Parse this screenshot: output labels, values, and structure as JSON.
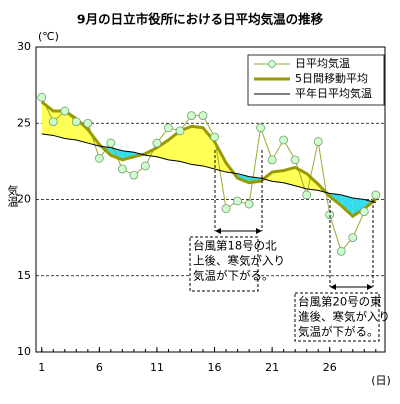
{
  "chart_data": {
    "type": "line",
    "title": "9月の日立市役所における日平均気温の推移",
    "y_unit_label": "(℃)",
    "y_label": "気温",
    "x_unit_label": "(日)",
    "x": [
      1,
      2,
      3,
      4,
      5,
      6,
      7,
      8,
      9,
      10,
      11,
      12,
      13,
      14,
      15,
      16,
      17,
      18,
      19,
      20,
      21,
      22,
      23,
      24,
      25,
      26,
      27,
      28,
      29,
      30
    ],
    "xlim": [
      0.5,
      30.8
    ],
    "xticks": [
      1,
      6,
      11,
      16,
      21,
      26
    ],
    "ylim": [
      10,
      30
    ],
    "yticks": [
      10,
      15,
      20,
      25,
      30
    ],
    "grid": true,
    "legend": "upper right",
    "fill_above_color": "#ffff55",
    "fill_below_color": "#33ddee",
    "series": [
      {
        "name": "日平均気温",
        "color": "#99aa33",
        "marker_fill": "#ccffcc",
        "values": [
          26.7,
          25.1,
          25.8,
          25.1,
          25.0,
          22.7,
          23.7,
          22.0,
          21.6,
          22.2,
          23.7,
          24.7,
          24.5,
          25.5,
          25.5,
          24.1,
          19.4,
          19.9,
          19.7,
          24.7,
          22.6,
          23.9,
          22.6,
          20.3,
          23.8,
          19.0,
          16.6,
          17.5,
          19.2,
          20.3
        ]
      },
      {
        "name": "5日間移動平均",
        "color": "#999900",
        "values": [
          26.4,
          25.8,
          25.8,
          25.3,
          24.6,
          23.6,
          22.9,
          22.6,
          22.8,
          23.0,
          23.4,
          23.9,
          24.5,
          24.8,
          24.7,
          23.8,
          22.4,
          21.4,
          21.1,
          21.2,
          21.8,
          21.9,
          22.1,
          21.7,
          21.0,
          20.2,
          19.6,
          18.9,
          19.4,
          20.0
        ]
      },
      {
        "name": "平年日平均気温",
        "color": "#000000",
        "values": [
          24.3,
          24.2,
          24.0,
          23.9,
          23.7,
          23.5,
          23.4,
          23.2,
          23.1,
          22.9,
          22.8,
          22.6,
          22.5,
          22.3,
          22.2,
          22.0,
          21.8,
          21.7,
          21.5,
          21.4,
          21.2,
          21.1,
          20.9,
          20.7,
          20.6,
          20.4,
          20.3,
          20.1,
          20.0,
          19.8
        ]
      }
    ],
    "annotations": [
      {
        "lines": [
          "台風第18号の北",
          "上後、寒気が入り",
          "気温が下がる。"
        ]
      },
      {
        "lines": [
          "台風第20号の東",
          "進後、寒気が入り",
          "気温が下がる。"
        ]
      }
    ]
  }
}
